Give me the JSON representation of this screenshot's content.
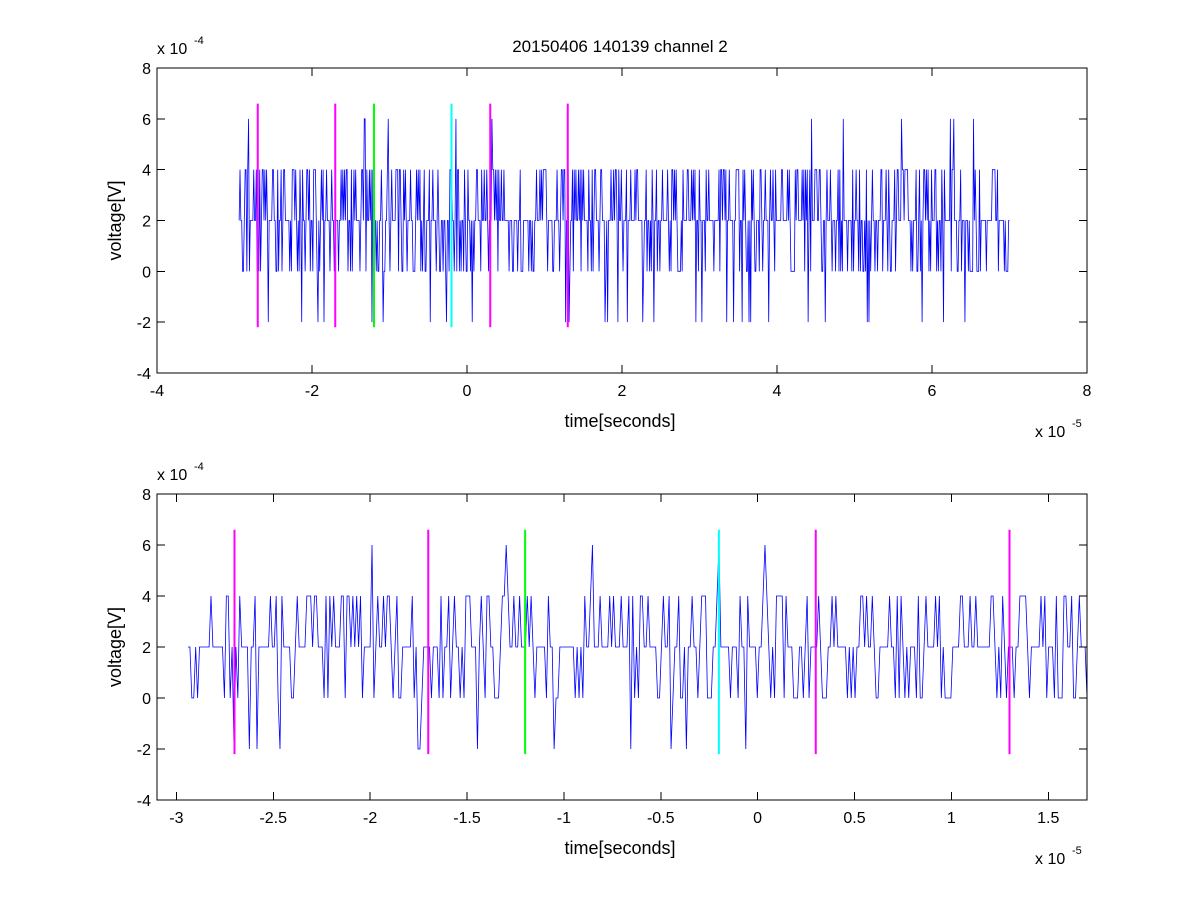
{
  "title": "20150406 140139 channel 2",
  "chart_data": [
    {
      "type": "line",
      "title": "20150406 140139 channel 2",
      "xlabel": "time[seconds]",
      "ylabel": "voltage[V]",
      "x_multiplier_label": "x 10",
      "x_multiplier_exp": "-5",
      "y_multiplier_label": "x 10",
      "y_multiplier_exp": "-4",
      "xlim": [
        -4e-05,
        8e-05
      ],
      "ylim": [
        -0.0004,
        0.0008
      ],
      "x_ticks": [
        -4,
        -2,
        0,
        2,
        4,
        6,
        8
      ],
      "x_tick_labels": [
        "-4",
        "-2",
        "0",
        "2",
        "4",
        "6",
        "8"
      ],
      "y_ticks": [
        -4,
        -2,
        0,
        2,
        4,
        6,
        8
      ],
      "y_tick_labels": [
        "-4",
        "-2",
        "0",
        "2",
        "4",
        "6",
        "8"
      ],
      "grid": false,
      "series": [
        {
          "color": "#0000ff",
          "x_start": -2.94e-05,
          "x_end": 7e-05,
          "values_note": "",
          "level_values": [
            -0.0002,
            0,
            0.0002,
            0.0004,
            0.0006
          ]
        }
      ],
      "markers": [
        {
          "x": -2.7e-05,
          "color": "#ff00ff",
          "y_range": [
            -0.00022,
            0.00066
          ]
        },
        {
          "x": -1.7e-05,
          "color": "#ff00ff",
          "y_range": [
            -0.00022,
            0.00066
          ]
        },
        {
          "x": -1.2e-05,
          "color": "#00ff00",
          "y_range": [
            -0.00022,
            0.00066
          ]
        },
        {
          "x": -2e-06,
          "color": "#00ffff",
          "y_range": [
            -0.00022,
            0.00066
          ]
        },
        {
          "x": 3e-06,
          "color": "#ff00ff",
          "y_range": [
            -0.00022,
            0.00066
          ]
        },
        {
          "x": 1.3e-05,
          "color": "#ff00ff",
          "y_range": [
            -0.00022,
            0.00066
          ]
        }
      ]
    },
    {
      "type": "line",
      "title": "",
      "xlabel": "time[seconds]",
      "ylabel": "voltage[V]",
      "x_multiplier_label": "x 10",
      "x_multiplier_exp": "-5",
      "y_multiplier_label": "x 10",
      "y_multiplier_exp": "-4",
      "xlim": [
        -3.1e-05,
        1.7e-05
      ],
      "ylim": [
        -0.0004,
        0.0008
      ],
      "x_ticks": [
        -3,
        -2.5,
        -2,
        -1.5,
        -1,
        -0.5,
        0,
        0.5,
        1,
        1.5
      ],
      "x_tick_labels": [
        "-3",
        "-2.5",
        "-2",
        "-1.5",
        "-1",
        "-0.5",
        "0",
        "0.5",
        "1",
        "1.5"
      ],
      "y_ticks": [
        -4,
        -2,
        0,
        2,
        4,
        6,
        8
      ],
      "y_tick_labels": [
        "-4",
        "-2",
        "0",
        "2",
        "4",
        "6",
        "8"
      ],
      "grid": false,
      "series": [
        {
          "color": "#0000ff",
          "x_start": -2.94e-05,
          "x_end": 1.7e-05,
          "level_values": [
            -0.0002,
            0,
            0.0002,
            0.0004,
            0.0006
          ]
        }
      ],
      "markers": [
        {
          "x": -2.7e-05,
          "color": "#ff00ff",
          "y_range": [
            -0.00022,
            0.00066
          ]
        },
        {
          "x": -1.7e-05,
          "color": "#ff00ff",
          "y_range": [
            -0.00022,
            0.00066
          ]
        },
        {
          "x": -1.2e-05,
          "color": "#00ff00",
          "y_range": [
            -0.00022,
            0.00066
          ]
        },
        {
          "x": -2e-06,
          "color": "#00ffff",
          "y_range": [
            -0.00022,
            0.00066
          ]
        },
        {
          "x": 3e-06,
          "color": "#ff00ff",
          "y_range": [
            -0.00022,
            0.00066
          ]
        },
        {
          "x": 1.3e-05,
          "color": "#ff00ff",
          "y_range": [
            -0.00022,
            0.00066
          ]
        }
      ]
    }
  ]
}
